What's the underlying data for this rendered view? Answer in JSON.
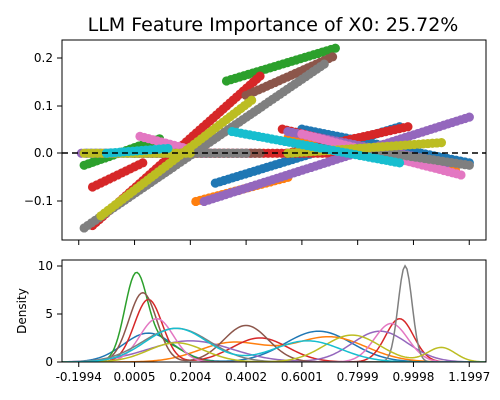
{
  "chart_data": [
    {
      "panel": "top",
      "type": "line",
      "title": "LLM Feature Importance of X0: 25.72%",
      "xlabel": "",
      "ylabel": "",
      "xlim": [
        -0.2594,
        1.2597
      ],
      "ylim": [
        -0.18,
        0.235
      ],
      "x_ticks": [
        -0.1994,
        0.0005,
        0.2004,
        0.4002,
        0.6001,
        0.7999,
        0.9998,
        1.1997
      ],
      "x_tick_labels_visible": false,
      "y_ticks": [
        -0.1,
        0.0,
        0.1,
        0.2
      ],
      "y_tick_labels": [
        "−0.1",
        "0.0",
        "0.1",
        "0.2"
      ],
      "reference_line": {
        "y": 0.0,
        "style": "dashed",
        "color": "#000000"
      },
      "series": [
        {
          "color": "#1f77b4",
          "segments": [
            {
              "x0": 0.29,
              "x1": 0.95,
              "y0": -0.062,
              "y1": 0.055
            },
            {
              "x0": 0.6,
              "x1": 1.2,
              "y0": 0.05,
              "y1": -0.02
            },
            {
              "x0": -0.17,
              "x1": 0.14,
              "y0": 0.0,
              "y1": 0.0
            }
          ]
        },
        {
          "color": "#ff7f0e",
          "segments": [
            {
              "x0": 0.55,
              "x1": 1.15,
              "y0": 0.032,
              "y1": -0.035
            },
            {
              "x0": 0.22,
              "x1": 0.55,
              "y0": -0.1,
              "y1": -0.05
            }
          ]
        },
        {
          "color": "#2ca02c",
          "segments": [
            {
              "x0": -0.18,
              "x1": 0.09,
              "y0": -0.025,
              "y1": 0.03
            },
            {
              "x0": 0.33,
              "x1": 0.72,
              "y0": 0.15,
              "y1": 0.218
            }
          ]
        },
        {
          "color": "#d62728",
          "segments": [
            {
              "x0": -0.15,
              "x1": 0.45,
              "y0": -0.15,
              "y1": 0.16
            },
            {
              "x0": -0.15,
              "x1": 0.03,
              "y0": -0.07,
              "y1": -0.02
            },
            {
              "x0": 0.22,
              "x1": 0.9,
              "y0": 0.0,
              "y1": 0.0
            },
            {
              "x0": 0.53,
              "x1": 1.05,
              "y0": 0.05,
              "y1": -0.02
            },
            {
              "x0": 0.55,
              "x1": 0.98,
              "y0": 0.0,
              "y1": 0.055
            }
          ]
        },
        {
          "color": "#9467bd",
          "segments": [
            {
              "x0": 0.25,
              "x1": 1.2,
              "y0": -0.1,
              "y1": 0.075
            },
            {
              "x0": -0.19,
              "x1": 0.42,
              "y0": 0.0,
              "y1": 0.0
            },
            {
              "x0": 0.55,
              "x1": 1.12,
              "y0": 0.045,
              "y1": -0.02
            }
          ]
        },
        {
          "color": "#8c564b",
          "segments": [
            {
              "x0": 0.4,
              "x1": 0.71,
              "y0": 0.12,
              "y1": 0.2
            },
            {
              "x0": 0.0,
              "x1": 0.45,
              "y0": 0.0,
              "y1": 0.0
            }
          ]
        },
        {
          "color": "#e377c2",
          "segments": [
            {
              "x0": 0.6,
              "x1": 1.17,
              "y0": 0.04,
              "y1": -0.045
            },
            {
              "x0": 0.02,
              "x1": 0.25,
              "y0": 0.035,
              "y1": 0.0
            }
          ]
        },
        {
          "color": "#7f7f7f",
          "segments": [
            {
              "x0": -0.18,
              "x1": 0.68,
              "y0": -0.155,
              "y1": 0.185
            },
            {
              "x0": 0.1,
              "x1": 0.4,
              "y0": 0.0,
              "y1": 0.0
            },
            {
              "x0": 0.8,
              "x1": 1.2,
              "y0": 0.01,
              "y1": -0.025
            }
          ]
        },
        {
          "color": "#bcbd22",
          "segments": [
            {
              "x0": -0.12,
              "x1": 0.42,
              "y0": -0.13,
              "y1": 0.11
            },
            {
              "x0": -0.18,
              "x1": 0.2,
              "y0": 0.0,
              "y1": 0.0
            },
            {
              "x0": 0.55,
              "x1": 1.1,
              "y0": 0.0,
              "y1": 0.022
            }
          ]
        },
        {
          "color": "#17becf",
          "segments": [
            {
              "x0": 0.35,
              "x1": 0.95,
              "y0": 0.045,
              "y1": -0.02
            },
            {
              "x0": -0.1,
              "x1": 0.12,
              "y0": 0.0,
              "y1": 0.01
            }
          ]
        }
      ]
    },
    {
      "panel": "bottom",
      "type": "area",
      "title": "",
      "xlabel": "",
      "ylabel": "Density",
      "xlim": [
        -0.2594,
        1.2597
      ],
      "ylim": [
        0,
        10.6
      ],
      "x_ticks": [
        -0.1994,
        0.0005,
        0.2004,
        0.4002,
        0.6001,
        0.7999,
        0.9998,
        1.1997
      ],
      "x_tick_labels": [
        "-0.1994",
        "0.0005",
        "0.2004",
        "0.4002",
        "0.6001",
        "0.7999",
        "0.9998",
        "1.1997"
      ],
      "y_ticks": [
        0,
        5,
        10
      ],
      "y_tick_labels": [
        "0",
        "5",
        "10"
      ],
      "series": [
        {
          "color": "#1f77b4",
          "peaks": [
            {
              "x": 0.05,
              "h": 3.0,
              "w": 0.09
            },
            {
              "x": 0.66,
              "h": 3.2,
              "w": 0.12
            }
          ]
        },
        {
          "color": "#ff7f0e",
          "peaks": [
            {
              "x": 0.35,
              "h": 2.0,
              "w": 0.12
            },
            {
              "x": 0.7,
              "h": 2.6,
              "w": 0.13
            }
          ]
        },
        {
          "color": "#2ca02c",
          "peaks": [
            {
              "x": 0.005,
              "h": 8.5,
              "w": 0.04
            },
            {
              "x": 0.1,
              "h": 2.0,
              "w": 0.07
            }
          ]
        },
        {
          "color": "#d62728",
          "peaks": [
            {
              "x": 0.05,
              "h": 6.5,
              "w": 0.05
            },
            {
              "x": 0.45,
              "h": 2.5,
              "w": 0.1
            },
            {
              "x": 0.95,
              "h": 4.5,
              "w": 0.05
            }
          ]
        },
        {
          "color": "#9467bd",
          "peaks": [
            {
              "x": 0.2,
              "h": 2.2,
              "w": 0.15
            },
            {
              "x": 0.88,
              "h": 3.2,
              "w": 0.1
            }
          ]
        },
        {
          "color": "#8c564b",
          "peaks": [
            {
              "x": 0.03,
              "h": 7.2,
              "w": 0.05
            },
            {
              "x": 0.4,
              "h": 3.8,
              "w": 0.08
            }
          ]
        },
        {
          "color": "#e377c2",
          "peaks": [
            {
              "x": 0.08,
              "h": 4.5,
              "w": 0.06
            },
            {
              "x": 0.92,
              "h": 4.0,
              "w": 0.06
            }
          ]
        },
        {
          "color": "#7f7f7f",
          "peaks": [
            {
              "x": 0.97,
              "h": 10.0,
              "w": 0.025
            },
            {
              "x": 0.15,
              "h": 3.5,
              "w": 0.12
            }
          ]
        },
        {
          "color": "#bcbd22",
          "peaks": [
            {
              "x": 0.15,
              "h": 2.0,
              "w": 0.1
            },
            {
              "x": 0.78,
              "h": 2.8,
              "w": 0.1
            },
            {
              "x": 1.1,
              "h": 1.5,
              "w": 0.05
            }
          ]
        },
        {
          "color": "#17becf",
          "peaks": [
            {
              "x": 0.15,
              "h": 3.5,
              "w": 0.11
            },
            {
              "x": 0.62,
              "h": 2.2,
              "w": 0.12
            }
          ]
        }
      ]
    }
  ]
}
